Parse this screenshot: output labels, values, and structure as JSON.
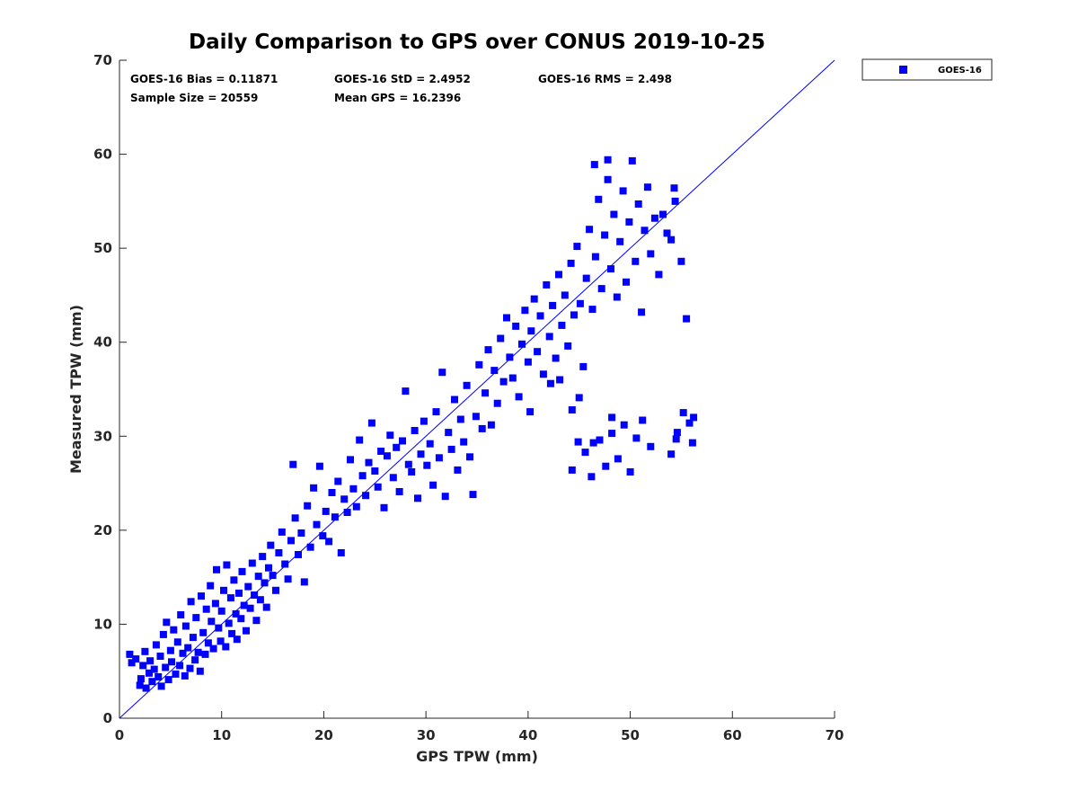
{
  "chart_data": {
    "type": "scatter",
    "title": "Daily Comparison to GPS over CONUS 2019-10-25",
    "xlabel": "GPS TPW (mm)",
    "ylabel": "Measured TPW (mm)",
    "xlim": [
      0,
      70
    ],
    "ylim": [
      0,
      70
    ],
    "xticks": [
      0,
      10,
      20,
      30,
      40,
      50,
      60,
      70
    ],
    "yticks": [
      0,
      10,
      20,
      30,
      40,
      50,
      60,
      70
    ],
    "grid": false,
    "legend_position": "outside-top-right",
    "reference_line": {
      "name": "1:1 line",
      "from": [
        0,
        0
      ],
      "to": [
        70,
        70
      ],
      "color": "#0000ff"
    },
    "annotations": [
      {
        "row": 1,
        "col": 1,
        "text": "GOES-16 Bias = 0.11871"
      },
      {
        "row": 1,
        "col": 2,
        "text": "GOES-16 StD = 2.4952"
      },
      {
        "row": 1,
        "col": 3,
        "text": "GOES-16 RMS = 2.498"
      },
      {
        "row": 2,
        "col": 1,
        "text": "Sample Size = 20559"
      },
      {
        "row": 2,
        "col": 2,
        "text": "Mean GPS = 16.2396"
      }
    ],
    "series": [
      {
        "name": "GOES-16",
        "color": "#0000ff",
        "marker": "square",
        "points": [
          [
            1.0,
            6.8
          ],
          [
            1.2,
            5.9
          ],
          [
            1.6,
            6.3
          ],
          [
            2.0,
            3.5
          ],
          [
            2.1,
            4.2
          ],
          [
            2.3,
            5.6
          ],
          [
            2.5,
            7.1
          ],
          [
            2.6,
            3.2
          ],
          [
            2.9,
            4.8
          ],
          [
            3.0,
            6.1
          ],
          [
            3.2,
            3.9
          ],
          [
            3.4,
            5.2
          ],
          [
            3.6,
            7.8
          ],
          [
            3.8,
            4.4
          ],
          [
            4.0,
            6.6
          ],
          [
            4.1,
            3.4
          ],
          [
            4.3,
            8.9
          ],
          [
            4.5,
            5.4
          ],
          [
            4.6,
            10.2
          ],
          [
            4.8,
            4.1
          ],
          [
            5.0,
            7.2
          ],
          [
            5.1,
            6.0
          ],
          [
            5.3,
            9.4
          ],
          [
            5.5,
            4.7
          ],
          [
            5.7,
            8.1
          ],
          [
            5.9,
            5.6
          ],
          [
            6.0,
            11.0
          ],
          [
            6.2,
            6.9
          ],
          [
            6.4,
            4.5
          ],
          [
            6.5,
            9.8
          ],
          [
            6.7,
            7.5
          ],
          [
            6.9,
            5.3
          ],
          [
            7.0,
            12.4
          ],
          [
            7.2,
            8.6
          ],
          [
            7.4,
            6.2
          ],
          [
            7.5,
            10.7
          ],
          [
            7.7,
            7.0
          ],
          [
            7.9,
            5.0
          ],
          [
            8.0,
            13.0
          ],
          [
            8.2,
            9.1
          ],
          [
            8.4,
            6.8
          ],
          [
            8.5,
            11.6
          ],
          [
            8.7,
            8.0
          ],
          [
            8.9,
            14.1
          ],
          [
            9.0,
            10.3
          ],
          [
            9.2,
            7.4
          ],
          [
            9.4,
            12.2
          ],
          [
            9.5,
            15.8
          ],
          [
            9.7,
            9.6
          ],
          [
            9.9,
            8.2
          ],
          [
            10.0,
            11.4
          ],
          [
            10.2,
            13.6
          ],
          [
            10.4,
            7.6
          ],
          [
            10.5,
            16.3
          ],
          [
            10.7,
            10.1
          ],
          [
            10.9,
            12.8
          ],
          [
            11.0,
            9.0
          ],
          [
            11.2,
            14.7
          ],
          [
            11.4,
            11.1
          ],
          [
            11.5,
            8.4
          ],
          [
            11.7,
            13.3
          ],
          [
            11.9,
            10.6
          ],
          [
            12.0,
            15.6
          ],
          [
            12.2,
            12.0
          ],
          [
            12.4,
            9.3
          ],
          [
            12.6,
            14.0
          ],
          [
            12.8,
            11.7
          ],
          [
            13.0,
            16.5
          ],
          [
            13.2,
            13.1
          ],
          [
            13.4,
            10.4
          ],
          [
            13.6,
            15.1
          ],
          [
            13.8,
            12.6
          ],
          [
            14.0,
            17.2
          ],
          [
            14.2,
            14.4
          ],
          [
            14.4,
            11.8
          ],
          [
            14.6,
            16.0
          ],
          [
            14.8,
            18.4
          ],
          [
            15.0,
            15.2
          ],
          [
            15.3,
            13.6
          ],
          [
            15.6,
            17.6
          ],
          [
            15.9,
            19.8
          ],
          [
            16.2,
            16.4
          ],
          [
            16.5,
            14.8
          ],
          [
            16.8,
            18.9
          ],
          [
            17.0,
            27.0
          ],
          [
            17.2,
            21.3
          ],
          [
            17.5,
            17.4
          ],
          [
            17.8,
            19.7
          ],
          [
            18.1,
            14.5
          ],
          [
            18.4,
            22.6
          ],
          [
            18.7,
            18.2
          ],
          [
            19.0,
            24.5
          ],
          [
            19.3,
            20.6
          ],
          [
            19.6,
            26.8
          ],
          [
            19.9,
            19.4
          ],
          [
            20.2,
            22.0
          ],
          [
            20.5,
            18.8
          ],
          [
            20.8,
            24.0
          ],
          [
            21.1,
            21.4
          ],
          [
            21.4,
            25.2
          ],
          [
            21.7,
            17.6
          ],
          [
            22.0,
            23.3
          ],
          [
            22.3,
            21.9
          ],
          [
            22.6,
            27.5
          ],
          [
            22.9,
            24.4
          ],
          [
            23.2,
            22.5
          ],
          [
            23.5,
            29.6
          ],
          [
            23.8,
            25.8
          ],
          [
            24.1,
            23.7
          ],
          [
            24.4,
            27.2
          ],
          [
            24.7,
            31.4
          ],
          [
            25.0,
            26.3
          ],
          [
            25.3,
            24.6
          ],
          [
            25.6,
            28.4
          ],
          [
            25.9,
            22.4
          ],
          [
            26.2,
            27.9
          ],
          [
            26.5,
            30.1
          ],
          [
            26.8,
            25.6
          ],
          [
            27.1,
            28.8
          ],
          [
            27.4,
            24.1
          ],
          [
            27.7,
            29.5
          ],
          [
            28.0,
            34.8
          ],
          [
            28.3,
            27.0
          ],
          [
            28.6,
            26.2
          ],
          [
            28.9,
            30.6
          ],
          [
            29.2,
            23.4
          ],
          [
            29.5,
            28.1
          ],
          [
            29.8,
            31.6
          ],
          [
            30.1,
            26.9
          ],
          [
            30.4,
            29.2
          ],
          [
            30.7,
            24.8
          ],
          [
            31.0,
            32.6
          ],
          [
            31.3,
            27.7
          ],
          [
            31.6,
            36.8
          ],
          [
            31.9,
            23.6
          ],
          [
            32.2,
            30.4
          ],
          [
            32.5,
            28.6
          ],
          [
            32.8,
            33.9
          ],
          [
            33.1,
            26.4
          ],
          [
            33.4,
            31.8
          ],
          [
            33.7,
            29.4
          ],
          [
            34.0,
            35.4
          ],
          [
            34.3,
            27.8
          ],
          [
            34.6,
            23.8
          ],
          [
            34.9,
            32.1
          ],
          [
            35.2,
            37.6
          ],
          [
            35.5,
            30.8
          ],
          [
            35.8,
            34.6
          ],
          [
            36.1,
            39.2
          ],
          [
            36.4,
            31.2
          ],
          [
            36.7,
            37.0
          ],
          [
            37.0,
            33.5
          ],
          [
            37.3,
            40.4
          ],
          [
            37.6,
            35.8
          ],
          [
            37.9,
            42.6
          ],
          [
            38.2,
            38.4
          ],
          [
            38.5,
            36.2
          ],
          [
            38.8,
            41.7
          ],
          [
            39.1,
            34.2
          ],
          [
            39.4,
            39.8
          ],
          [
            39.7,
            43.4
          ],
          [
            40.0,
            37.9
          ],
          [
            40.3,
            41.2
          ],
          [
            40.6,
            44.6
          ],
          [
            40.9,
            39.0
          ],
          [
            41.2,
            42.8
          ],
          [
            41.5,
            36.6
          ],
          [
            41.8,
            46.1
          ],
          [
            42.1,
            40.6
          ],
          [
            42.4,
            43.9
          ],
          [
            42.7,
            38.3
          ],
          [
            43.0,
            47.2
          ],
          [
            43.3,
            41.8
          ],
          [
            43.6,
            45.0
          ],
          [
            43.9,
            39.6
          ],
          [
            44.2,
            48.4
          ],
          [
            44.5,
            42.9
          ],
          [
            44.8,
            50.2
          ],
          [
            45.1,
            44.1
          ],
          [
            45.4,
            37.4
          ],
          [
            45.7,
            46.8
          ],
          [
            46.0,
            52.0
          ],
          [
            46.3,
            43.5
          ],
          [
            46.6,
            49.1
          ],
          [
            46.9,
            55.2
          ],
          [
            47.2,
            45.7
          ],
          [
            47.5,
            51.4
          ],
          [
            47.8,
            57.3
          ],
          [
            48.1,
            47.8
          ],
          [
            48.4,
            53.6
          ],
          [
            48.7,
            44.8
          ],
          [
            49.0,
            50.7
          ],
          [
            49.3,
            56.1
          ],
          [
            49.6,
            46.4
          ],
          [
            49.9,
            52.8
          ],
          [
            50.2,
            59.3
          ],
          [
            50.5,
            48.6
          ],
          [
            50.8,
            54.7
          ],
          [
            51.1,
            43.2
          ],
          [
            51.4,
            51.9
          ],
          [
            51.7,
            56.5
          ],
          [
            52.0,
            49.4
          ],
          [
            52.4,
            53.2
          ],
          [
            52.8,
            47.2
          ],
          [
            53.2,
            53.6
          ],
          [
            53.6,
            51.6
          ],
          [
            54.0,
            50.9
          ],
          [
            54.4,
            55.0
          ],
          [
            55.0,
            48.6
          ],
          [
            55.5,
            42.5
          ],
          [
            54.3,
            56.4
          ],
          [
            47.8,
            59.4
          ],
          [
            46.5,
            58.9
          ],
          [
            44.3,
            32.8
          ],
          [
            42.2,
            35.6
          ],
          [
            45.0,
            34.1
          ],
          [
            40.2,
            32.6
          ],
          [
            43.1,
            36.0
          ],
          [
            44.3,
            26.4
          ],
          [
            44.9,
            29.4
          ],
          [
            45.6,
            28.3
          ],
          [
            46.2,
            25.7
          ],
          [
            47.0,
            29.6
          ],
          [
            47.6,
            26.8
          ],
          [
            48.2,
            30.3
          ],
          [
            48.8,
            27.6
          ],
          [
            49.4,
            31.2
          ],
          [
            50.0,
            26.2
          ],
          [
            50.6,
            29.8
          ],
          [
            51.2,
            31.7
          ],
          [
            54.0,
            28.1
          ],
          [
            54.6,
            30.4
          ],
          [
            55.2,
            32.5
          ],
          [
            55.8,
            31.4
          ],
          [
            56.1,
            29.3
          ],
          [
            56.2,
            32.0
          ],
          [
            54.5,
            29.7
          ],
          [
            52.0,
            28.9
          ],
          [
            46.4,
            29.3
          ],
          [
            48.2,
            32.0
          ]
        ]
      }
    ]
  }
}
